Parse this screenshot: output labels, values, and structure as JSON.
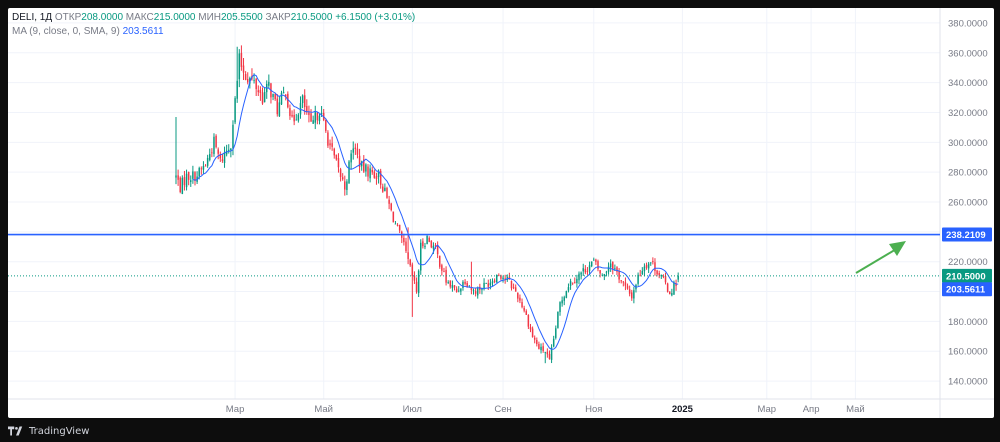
{
  "legend": {
    "symbol": "DELI, 1Д",
    "open_label": "ОТКР",
    "open_value": "208.0000",
    "high_label": "МАКС",
    "high_value": "215.0000",
    "low_label": "МИН",
    "low_value": "205.5500",
    "close_label": "ЗАКР",
    "close_value": "210.5000",
    "change": "+6.1500 (+3.01%)",
    "ma_label": "MA (9, close, 0, SMA, 9)",
    "ma_value": "203.5611"
  },
  "footer": {
    "brand": "TradingView"
  },
  "colors": {
    "up": "#089981",
    "down": "#f23645",
    "ma": "#2962ff",
    "hline": "#2962ff",
    "arrow": "#4caf50"
  },
  "chart_data": {
    "type": "candlestick",
    "y_range": [
      128,
      390
    ],
    "y_ticks": [
      "380.0000",
      "360.0000",
      "340.0000",
      "320.0000",
      "300.0000",
      "280.0000",
      "260.0000",
      "240.0000",
      "220.0000",
      "200.0000",
      "180.0000",
      "160.0000",
      "140.0000"
    ],
    "y_tick_values": [
      380,
      360,
      340,
      320,
      300,
      280,
      260,
      240,
      220,
      200,
      180,
      160,
      140
    ],
    "x_ticks": [
      {
        "label": "Мар",
        "bar": 28
      },
      {
        "label": "Май",
        "bar": 70
      },
      {
        "label": "Июл",
        "bar": 112
      },
      {
        "label": "Сен",
        "bar": 155
      },
      {
        "label": "Ноя",
        "bar": 198
      },
      {
        "label": "2025",
        "bar": 240
      },
      {
        "label": "Мар",
        "bar": 280
      },
      {
        "label": "Апр",
        "bar": 301
      },
      {
        "label": "Май",
        "bar": 322
      }
    ],
    "total_slots": 335,
    "horizontal_line": {
      "value": 238.2109,
      "label": "238.2109"
    },
    "price_label": {
      "value": 210.5,
      "label": "210.5000"
    },
    "ma_label": {
      "value": 203.5611,
      "label": "203.5611"
    },
    "anchors": [
      [
        0,
        277
      ],
      [
        2,
        270
      ],
      [
        5,
        277
      ],
      [
        10,
        278
      ],
      [
        14,
        285
      ],
      [
        18,
        300
      ],
      [
        21,
        287
      ],
      [
        26,
        300
      ],
      [
        30,
        355
      ],
      [
        33,
        345
      ],
      [
        37,
        340
      ],
      [
        41,
        330
      ],
      [
        44,
        338
      ],
      [
        48,
        322
      ],
      [
        52,
        335
      ],
      [
        55,
        313
      ],
      [
        60,
        328
      ],
      [
        64,
        310
      ],
      [
        68,
        322
      ],
      [
        72,
        302
      ],
      [
        76,
        285
      ],
      [
        80,
        270
      ],
      [
        84,
        298
      ],
      [
        88,
        283
      ],
      [
        92,
        280
      ],
      [
        96,
        278
      ],
      [
        100,
        262
      ],
      [
        104,
        245
      ],
      [
        108,
        230
      ],
      [
        111,
        215
      ],
      [
        114,
        200
      ],
      [
        116,
        230
      ],
      [
        119,
        236
      ],
      [
        123,
        228
      ],
      [
        128,
        207
      ],
      [
        133,
        200
      ],
      [
        137,
        208
      ],
      [
        141,
        200
      ],
      [
        145,
        203
      ],
      [
        149,
        207
      ],
      [
        153,
        212
      ],
      [
        157,
        208
      ],
      [
        161,
        200
      ],
      [
        165,
        188
      ],
      [
        169,
        170
      ],
      [
        172,
        162
      ],
      [
        175,
        160
      ],
      [
        177,
        153
      ],
      [
        179,
        168
      ],
      [
        182,
        192
      ],
      [
        186,
        205
      ],
      [
        190,
        210
      ],
      [
        194,
        215
      ],
      [
        198,
        220
      ],
      [
        202,
        210
      ],
      [
        206,
        220
      ],
      [
        210,
        210
      ],
      [
        214,
        200
      ],
      [
        216,
        197
      ],
      [
        219,
        210
      ],
      [
        222,
        218
      ],
      [
        225,
        220
      ],
      [
        229,
        212
      ],
      [
        232,
        205
      ],
      [
        234,
        199
      ],
      [
        236,
        204
      ],
      [
        238,
        208
      ]
    ],
    "seed": 7,
    "first_bar_x": 168,
    "bar_step": 2.11,
    "last_close": 210.5,
    "last_open": 208
  }
}
